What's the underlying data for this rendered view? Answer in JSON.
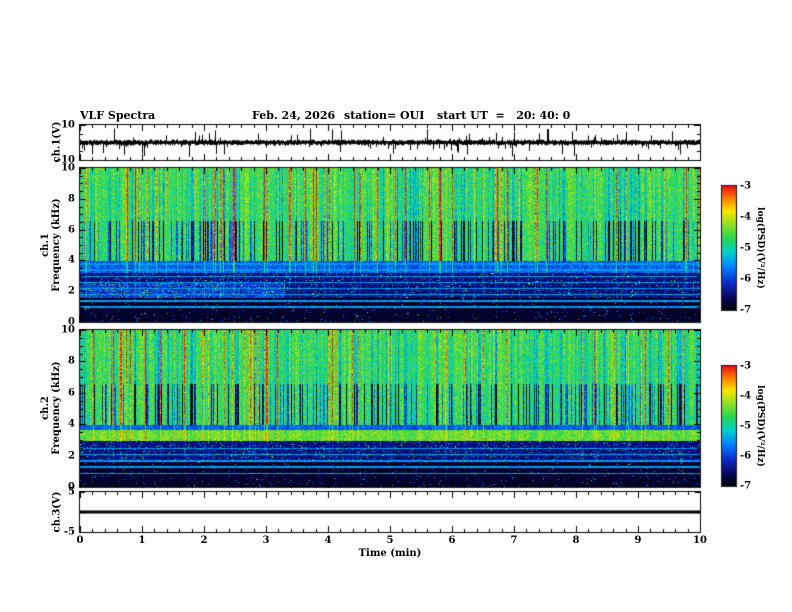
{
  "header": {
    "title": "VLF Spectra",
    "date": "Feb. 24, 2026",
    "station": "station= OUI",
    "start_ut_label": "start UT  =   20: 40: 0"
  },
  "xaxis": {
    "label": "Time (min)",
    "range": [
      0,
      10
    ],
    "ticks": [
      0,
      1,
      2,
      3,
      4,
      5,
      6,
      7,
      8,
      9,
      10
    ]
  },
  "colorbar": {
    "label": "log(PSD)(V²/Hz)",
    "range": [
      -7,
      -3
    ],
    "ticks": [
      -3,
      -4,
      -5,
      -6,
      -7
    ]
  },
  "chart_data": [
    {
      "type": "line",
      "panel": "ch1-waveform",
      "ylabel": "ch.1(V)",
      "ylim": [
        -10,
        10
      ],
      "yticks": [
        10,
        -10
      ],
      "x_range_min": [
        0,
        10
      ],
      "summary": "Broadband noise centred on 0 V with dense impulsive spikes reaching roughly ±8 V throughout the 10-minute record."
    },
    {
      "type": "heatmap",
      "panel": "ch1-spectrogram",
      "ylabel_channel": "ch.1",
      "ylabel_axis": "Frequency (kHz)",
      "ylim": [
        0,
        10
      ],
      "yticks": [
        0,
        2,
        4,
        6,
        8,
        10
      ],
      "x_range_min": [
        0,
        10
      ],
      "zlabel": "log(PSD)(V²/Hz)",
      "zlim": [
        -7,
        -3
      ],
      "features": [
        "Strong broadband power (green-yellow, about -5 to -4) from 4 to 10 kHz with dense vertical sferic streaks reaching red (-3)",
        "Dark blue vertical gaps between streaks mainly from 4 to 6.5 kHz",
        "Weak dark-blue band from about 2 to 4 kHz crossed by thin horizontal interference lines",
        "Mostly black (below -6.5) under 2 kHz with sparse blue speckle and faint cyan patches near the start of the record"
      ]
    },
    {
      "type": "heatmap",
      "panel": "ch2-spectrogram",
      "ylabel_channel": "ch.2",
      "ylabel_axis": "Frequency (kHz)",
      "ylim": [
        0,
        10
      ],
      "yticks": [
        0,
        2,
        4,
        6,
        8,
        10
      ],
      "x_range_min": [
        0,
        10
      ],
      "zlabel": "log(PSD)(V²/Hz)",
      "zlim": [
        -7,
        -3
      ],
      "features": [
        "Broadband sferic activity from 4 to 10 kHz similar to ch.1",
        "Bright yellow-green band near 3 to 3.6 kHz running the full length of the record",
        "Dark band with thin horizontal interference lines from about 1.5 to 3 kHz",
        "Mostly black below 1.5 kHz with sparse blue speckle"
      ]
    },
    {
      "type": "line",
      "panel": "ch3-waveform",
      "ylabel": "ch.3(V)",
      "ylim": [
        -5,
        5
      ],
      "yticks": [
        5,
        -5
      ],
      "x_range_min": [
        0,
        10
      ],
      "summary": "Flat constant trace at about 0 V for the entire record."
    }
  ]
}
